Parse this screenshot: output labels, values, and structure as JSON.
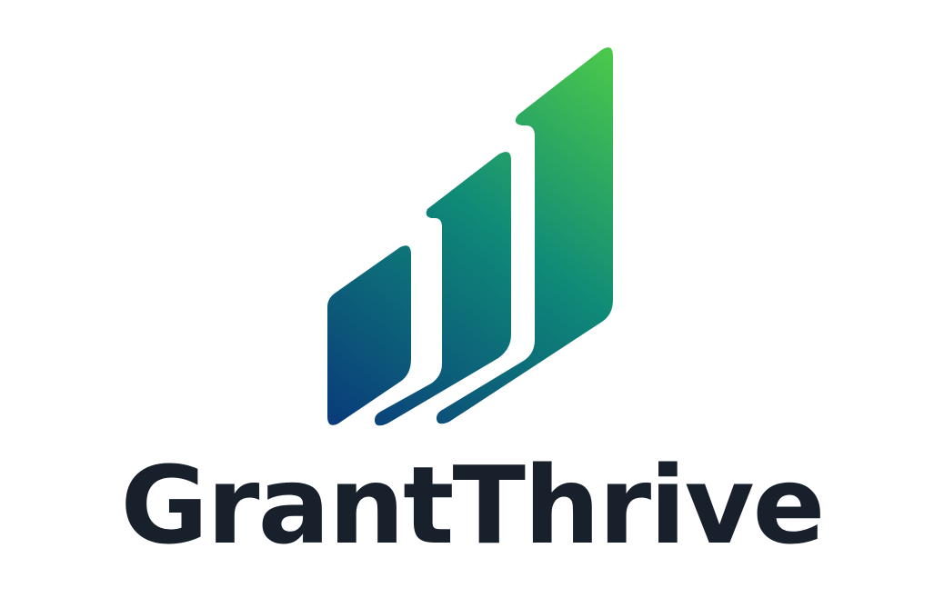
{
  "brand": {
    "name": "GrantThrive",
    "colors": {
      "text": "#18202c",
      "gradient_dark": "#0a3a7a",
      "gradient_mid": "#0f8a78",
      "gradient_light": "#4cc94a"
    },
    "icon": "rising-bars-arrow-icon"
  }
}
